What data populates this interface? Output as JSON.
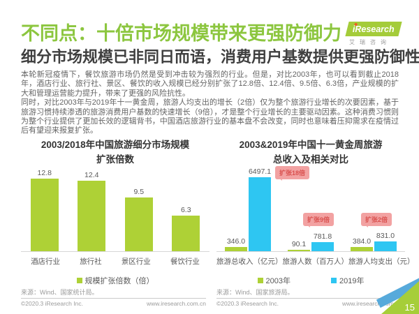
{
  "header": {
    "title": "不同点：十倍市场规模带来更强防御力",
    "subtitle": "细分市场规模已非同日而语，消费用户基数提供更强防御性"
  },
  "logo": {
    "brand": "iResearch",
    "caption": "艾瑞咨询"
  },
  "body": {
    "paragraphs": [
      "本轮新冠疫情下，餐饮旅游市场仍然是受到冲击较为强烈的行业。但是，对比2003年，也可以看到截止2018年，酒店行业、旅行社、景区、餐饮的收入规模已经分别扩张了12.8倍、12.4倍、9.5倍、6.3倍，产业规模的扩大和管理运营能力提升，带来了更强的风险抗性。",
      "同时，对比2003年与2019年十一黄金周，旅游人均支出的增长（2倍）仅为整个旅游行业增长的次要因素，基于旅游习惯持续渗透的旅游消费用户基数的快速增长（9倍），才是整个行业增长的主要驱动因素。这种消费习惯则为整个行业提供了更加长效的逻辑背书，中国酒店旅游行业的基本盘不会改变，同时也意味着压抑需求在疫情过后有望迎来报复扩张。"
    ]
  },
  "chart_data": [
    {
      "type": "bar",
      "title": "2003/2018年中国旅游细分市场规模扩张倍数",
      "title_lines": [
        "2003/2018年中国旅游细分市场规模",
        "扩张倍数"
      ],
      "categories": [
        "酒店行业",
        "旅行社",
        "景区行业",
        "餐饮行业"
      ],
      "values": [
        12.8,
        12.4,
        9.5,
        6.3
      ],
      "value_labels": [
        "12.8",
        "12.4",
        "9.5",
        "6.3"
      ],
      "bar_color": "#aed136",
      "legend": [
        {
          "label": "规模扩张倍数（倍）",
          "color": "#aed136"
        }
      ],
      "ylim": [
        0,
        13
      ],
      "grid": false,
      "legend_position": "bottom",
      "source": "来源：Wind、国家统计局。"
    },
    {
      "type": "bar",
      "title": "2003&2019年中国十一黄金周旅游总收入及相关对比",
      "title_lines": [
        "2003&2019年中国十一黄金周旅游",
        "总收入及相关对比"
      ],
      "categories": [
        "旅游总收入（亿元）",
        "旅游人数（百万人）",
        "旅游人均支出（元）"
      ],
      "series": [
        {
          "name": "2003年",
          "color": "#aed136",
          "values": [
            346.0,
            90.1,
            384.0
          ],
          "value_labels": [
            "346.0",
            "90.1",
            "384.0"
          ]
        },
        {
          "name": "2019年",
          "color": "#2ec6f2",
          "values": [
            6497.1,
            781.8,
            831.0
          ],
          "value_labels": [
            "6497.1",
            "781.8",
            "831.0"
          ]
        }
      ],
      "annotations": [
        {
          "label": "扩张18倍",
          "group": "旅游总收入（亿元）"
        },
        {
          "label": "扩张9倍",
          "group": "旅游人数（百万人）"
        },
        {
          "label": "扩张2倍",
          "group": "旅游人均支出（元）"
        }
      ],
      "ylim": [
        0,
        6800
      ],
      "grid": false,
      "legend_position": "bottom",
      "source": "来源：Wind、国家旅游局。"
    }
  ],
  "footers": [
    {
      "copyright": "©2020.3 iResearch Inc.",
      "website": "www.iresearch.com.cn"
    },
    {
      "copyright": "©2020.3 iResearch Inc.",
      "website": "www.iresearch.com.cn"
    }
  ],
  "page_number": "15",
  "colors": {
    "title_green": "#8cc63f",
    "bar_green": "#aed136",
    "bar_blue": "#2ec6f2",
    "badge_pink": "#f2a2a2",
    "badge_text": "#d9504e",
    "corner_green": "#a6ce39",
    "corner_blue": "#57aadb"
  }
}
